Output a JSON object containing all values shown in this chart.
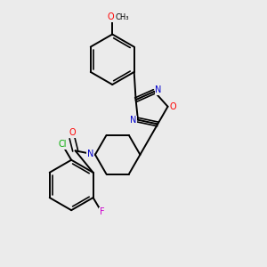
{
  "bg_color": "#ebebeb",
  "bond_color": "#000000",
  "label_colors": {
    "O": "#ff0000",
    "N": "#0000cd",
    "Cl": "#00aa00",
    "F": "#cc00cc"
  },
  "figsize": [
    3.0,
    3.0
  ],
  "dpi": 100,
  "lw": 1.4,
  "fs": 7.0
}
